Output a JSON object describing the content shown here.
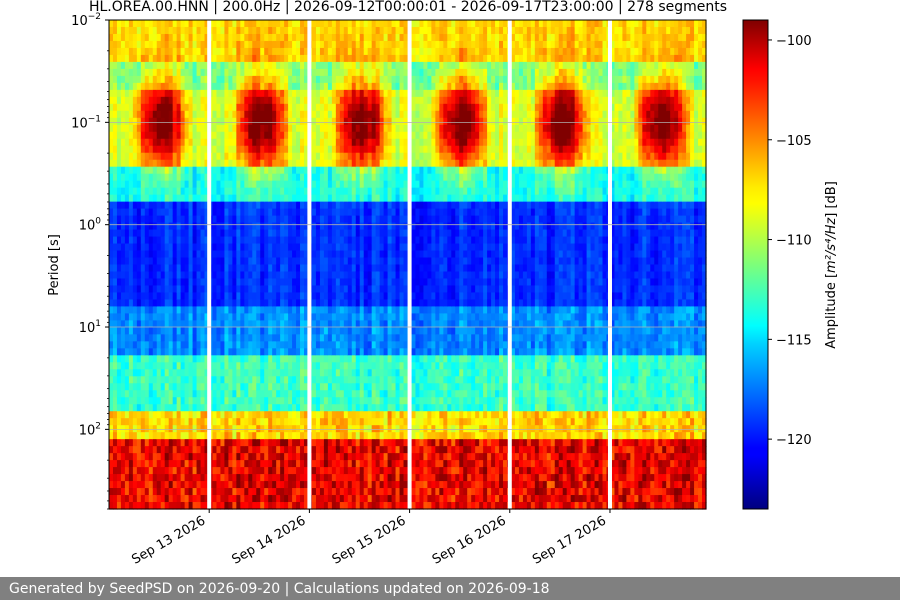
{
  "chart_data": {
    "type": "heatmap",
    "title": "HL.OREA.00.HNN | 200.0Hz | 2026-09-12T00:00:01 - 2026-09-17T23:00:00 | 278 segments",
    "ylabel": "Period [s]",
    "y_scale": "log",
    "y_inverted": true,
    "ylim": [
      0.01,
      600
    ],
    "y_ticks": [
      {
        "value": 0.01,
        "base": "10",
        "exp": "−2"
      },
      {
        "value": 0.1,
        "base": "10",
        "exp": "−1"
      },
      {
        "value": 1,
        "base": "10",
        "exp": "0"
      },
      {
        "value": 10,
        "base": "10",
        "exp": "1"
      },
      {
        "value": 100,
        "base": "10",
        "exp": "2"
      }
    ],
    "x_ticks": [
      "Sep 13 2026",
      "Sep 14 2026",
      "Sep 15 2026",
      "Sep 16 2026",
      "Sep 17 2026"
    ],
    "xlim": [
      "2026-09-12T00:00:01",
      "2026-09-17T23:00:00"
    ],
    "x_tick_times": [
      "2026-09-13T00:00:00",
      "2026-09-14T00:00:00",
      "2026-09-15T00:00:00",
      "2026-09-16T00:00:00",
      "2026-09-17T00:00:00"
    ],
    "data_gaps": [
      "2026-09-13T00:00:00",
      "2026-09-14T00:00:00",
      "2026-09-15T00:00:00",
      "2026-09-16T00:00:00",
      "2026-09-17T00:00:00"
    ],
    "grid": true,
    "colormap": "jet",
    "colorbar": {
      "label_prefix": "Amplitude [",
      "label_unit": "m²/s⁴/Hz",
      "label_suffix": "] [dB]",
      "range": [
        -123.5,
        -99
      ],
      "ticks": [
        -100,
        -105,
        -110,
        -115,
        -120
      ],
      "tick_labels": [
        "−100",
        "−105",
        "−110",
        "−115",
        "−120"
      ]
    },
    "segments": 278,
    "sampling_rate_hz": 200.0,
    "station": "HL.OREA.00.HNN"
  },
  "footer": {
    "text": "Generated by SeedPSD on 2026-09-20 | Calculations updated on 2026-09-18"
  }
}
